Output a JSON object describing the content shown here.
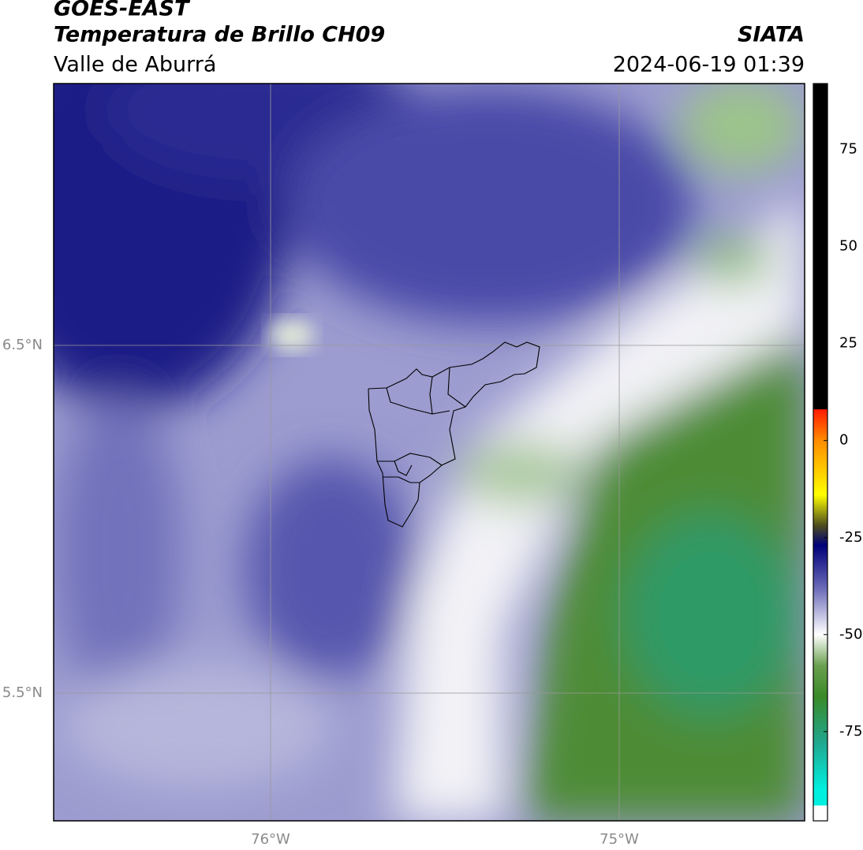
{
  "header": {
    "title": "GOES-EAST",
    "subtitle": "Temperatura de Brillo CH09",
    "source": "SIATA",
    "region": "Valle de Aburrá",
    "timestamp": "2024-06-19 01:39"
  },
  "map": {
    "lat_labels": [
      "6.5°N",
      "5.5°N"
    ],
    "lon_labels": [
      "76°W",
      "75°W"
    ]
  },
  "colorbar": {
    "ylim": [
      -98,
      92
    ],
    "yticks": [
      75,
      50,
      25,
      0,
      -25,
      -50,
      -75
    ],
    "stops": [
      {
        "value": 92,
        "color": "#000000"
      },
      {
        "value": 8.1,
        "color": "#000000"
      },
      {
        "value": 8,
        "color": "#ff1a00"
      },
      {
        "value": 0,
        "color": "#ff8c00"
      },
      {
        "value": -14,
        "color": "#ffff00"
      },
      {
        "value": -22,
        "color": "#4a4a20"
      },
      {
        "value": -27,
        "color": "#00007a"
      },
      {
        "value": -38,
        "color": "#6a6ab8"
      },
      {
        "value": -50,
        "color": "#ffffff"
      },
      {
        "value": -58,
        "color": "#6aa050"
      },
      {
        "value": -66,
        "color": "#3a8a28"
      },
      {
        "value": -78,
        "color": "#20a890"
      },
      {
        "value": -90,
        "color": "#00f0e0"
      },
      {
        "value": -94,
        "color": "#00f0e0"
      },
      {
        "value": -94.1,
        "color": "#ffffff"
      },
      {
        "value": -98,
        "color": "#ffffff"
      }
    ]
  }
}
